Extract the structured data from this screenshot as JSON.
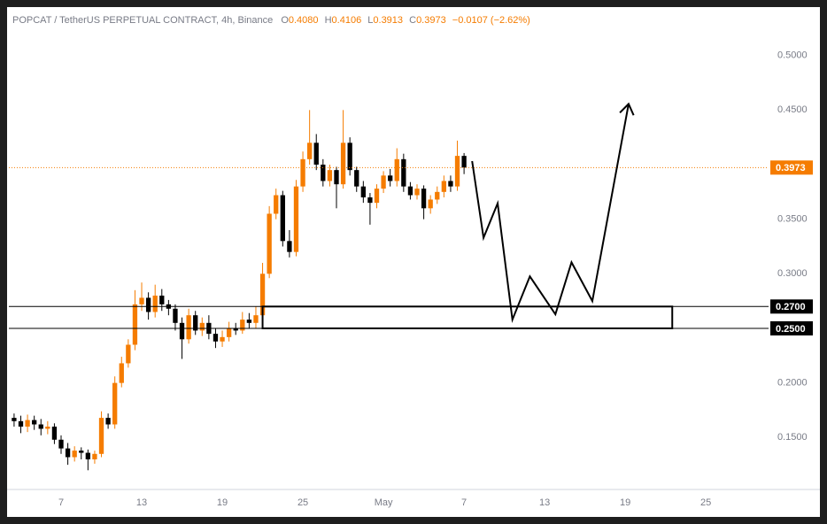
{
  "chart_data": {
    "type": "candlestick",
    "title": "POPCAT / TetherUS PERPETUAL CONTRACT, 4h, Binance",
    "ohlc_header": {
      "o_label": "O",
      "o": "0.4080",
      "h_label": "H",
      "h": "0.4106",
      "l_label": "L",
      "l": "0.3913",
      "c_label": "C",
      "c": "0.3973",
      "change": "−0.0107 (−2.62%)"
    },
    "up_color": "#f57c00",
    "down_color": "#000000",
    "x": [
      3.5,
      4,
      4.5,
      5,
      5.5,
      6,
      6.5,
      7,
      7.5,
      8,
      8.5,
      9,
      9.5,
      10,
      10.5,
      11,
      11.5,
      12,
      12.5,
      13,
      13.5,
      14,
      14.5,
      15,
      15.5,
      16,
      16.5,
      17,
      17.5,
      18,
      18.5,
      19,
      19.5,
      20,
      20.5,
      21,
      21.5,
      22,
      22.5,
      23,
      23.5,
      24,
      24.5,
      25,
      25.5,
      26,
      26.5,
      27,
      27.5,
      28,
      28.5,
      29,
      29.5,
      30,
      30.5,
      31,
      31.5,
      32,
      32.5,
      33,
      33.5,
      34,
      34.5,
      35,
      35.5,
      36,
      36.5,
      37
    ],
    "open": [
      0.168,
      0.165,
      0.16,
      0.166,
      0.162,
      0.158,
      0.16,
      0.148,
      0.14,
      0.132,
      0.138,
      0.136,
      0.13,
      0.135,
      0.168,
      0.162,
      0.2,
      0.218,
      0.235,
      0.272,
      0.278,
      0.265,
      0.28,
      0.272,
      0.268,
      0.255,
      0.24,
      0.262,
      0.248,
      0.255,
      0.245,
      0.238,
      0.242,
      0.25,
      0.248,
      0.258,
      0.255,
      0.262,
      0.3,
      0.355,
      0.372,
      0.33,
      0.32,
      0.38,
      0.405,
      0.42,
      0.4,
      0.385,
      0.395,
      0.382,
      0.42,
      0.395,
      0.38,
      0.37,
      0.365,
      0.378,
      0.39,
      0.385,
      0.405,
      0.38,
      0.372,
      0.378,
      0.36,
      0.368,
      0.375,
      0.385,
      0.38,
      0.408
    ],
    "high": [
      0.172,
      0.17,
      0.171,
      0.17,
      0.167,
      0.165,
      0.163,
      0.152,
      0.145,
      0.142,
      0.141,
      0.139,
      0.138,
      0.174,
      0.172,
      0.206,
      0.224,
      0.24,
      0.285,
      0.292,
      0.283,
      0.29,
      0.286,
      0.276,
      0.272,
      0.26,
      0.268,
      0.266,
      0.26,
      0.262,
      0.25,
      0.248,
      0.256,
      0.255,
      0.265,
      0.264,
      0.27,
      0.31,
      0.362,
      0.378,
      0.376,
      0.34,
      0.386,
      0.412,
      0.45,
      0.428,
      0.405,
      0.4,
      0.398,
      0.45,
      0.425,
      0.398,
      0.385,
      0.374,
      0.382,
      0.394,
      0.396,
      0.415,
      0.41,
      0.384,
      0.382,
      0.381,
      0.372,
      0.38,
      0.39,
      0.39,
      0.422,
      0.4106
    ],
    "low": [
      0.16,
      0.154,
      0.155,
      0.157,
      0.152,
      0.153,
      0.144,
      0.135,
      0.125,
      0.128,
      0.13,
      0.12,
      0.126,
      0.132,
      0.158,
      0.158,
      0.196,
      0.214,
      0.23,
      0.266,
      0.258,
      0.26,
      0.266,
      0.262,
      0.248,
      0.222,
      0.236,
      0.244,
      0.243,
      0.24,
      0.232,
      0.233,
      0.238,
      0.244,
      0.245,
      0.25,
      0.25,
      0.258,
      0.296,
      0.35,
      0.325,
      0.315,
      0.316,
      0.375,
      0.4,
      0.395,
      0.38,
      0.38,
      0.36,
      0.378,
      0.39,
      0.375,
      0.365,
      0.345,
      0.36,
      0.374,
      0.38,
      0.38,
      0.375,
      0.368,
      0.368,
      0.35,
      0.355,
      0.364,
      0.37,
      0.375,
      0.376,
      0.3913
    ],
    "close": [
      0.165,
      0.16,
      0.166,
      0.162,
      0.158,
      0.16,
      0.148,
      0.14,
      0.132,
      0.138,
      0.136,
      0.13,
      0.135,
      0.168,
      0.162,
      0.2,
      0.218,
      0.235,
      0.272,
      0.278,
      0.265,
      0.28,
      0.272,
      0.268,
      0.255,
      0.24,
      0.262,
      0.248,
      0.255,
      0.245,
      0.238,
      0.242,
      0.25,
      0.248,
      0.258,
      0.255,
      0.262,
      0.3,
      0.355,
      0.372,
      0.33,
      0.32,
      0.38,
      0.405,
      0.42,
      0.4,
      0.385,
      0.395,
      0.382,
      0.42,
      0.395,
      0.38,
      0.37,
      0.365,
      0.378,
      0.39,
      0.385,
      0.405,
      0.38,
      0.372,
      0.378,
      0.36,
      0.368,
      0.375,
      0.385,
      0.38,
      0.408,
      0.3973
    ],
    "last_price": {
      "value": 0.3973,
      "label": "0.3973"
    },
    "levels": [
      {
        "value": 0.27,
        "label": "0.2700"
      },
      {
        "value": 0.25,
        "label": "0.2500"
      }
    ],
    "zone": {
      "x": [
        22,
        52.5
      ],
      "y": [
        0.25,
        0.27
      ]
    },
    "projection": {
      "x": [
        37.6,
        38.45,
        39.5,
        40.6,
        41.9,
        43.8,
        45.0,
        46.55,
        49.25
      ],
      "y": [
        0.4032,
        0.333,
        0.3645,
        0.258,
        0.2976,
        0.2629,
        0.3105,
        0.275,
        0.4556
      ]
    },
    "xlim": [
      3.11,
      59.67
    ],
    "ylim": [
      0.1024,
      0.5427
    ],
    "xticks": [
      7,
      13,
      19,
      25,
      {
        "value": 31,
        "label": "May"
      },
      {
        "value": 37,
        "label": "7"
      },
      {
        "value": 43,
        "label": "13"
      },
      {
        "value": 49,
        "label": "19"
      },
      {
        "value": 55,
        "label": "25"
      }
    ],
    "yticks": [
      {
        "value": 0.15,
        "label": "0.1500"
      },
      {
        "value": 0.2,
        "label": "0.2000"
      },
      {
        "value": 0.3,
        "label": "0.3000"
      },
      {
        "value": 0.35,
        "label": "0.3500"
      },
      {
        "value": 0.45,
        "label": "0.4500"
      },
      {
        "value": 0.5,
        "label": "0.5000"
      }
    ]
  }
}
